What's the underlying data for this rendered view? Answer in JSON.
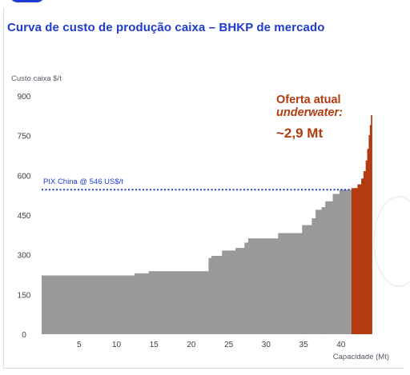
{
  "slide": {
    "title": "Curva de custo de produção caixa – BHKP de mercado"
  },
  "chart_data": {
    "type": "bar",
    "subtype": "cost-curve",
    "title": "Curva de custo de produção caixa – BHKP de mercado",
    "ylabel": "Custo caixa $/t",
    "xlabel": "Capacidade (Mt)",
    "xlim": [
      0,
      44.3
    ],
    "ylim": [
      0,
      900
    ],
    "xticks": [
      5,
      10,
      15,
      20,
      25,
      30,
      35,
      40
    ],
    "yticks": [
      0,
      150,
      300,
      450,
      600,
      750,
      900
    ],
    "grid": false,
    "colors": {
      "base": "#999999",
      "underwater": "#b33b10",
      "reference": "#1f3bd1"
    },
    "steps": [
      {
        "x0": 0,
        "x1": 12.4,
        "y": 222
      },
      {
        "x0": 12.4,
        "x1": 14.3,
        "y": 230
      },
      {
        "x0": 14.3,
        "x1": 22.3,
        "y": 238
      },
      {
        "x0": 22.3,
        "x1": 22.7,
        "y": 288
      },
      {
        "x0": 22.7,
        "x1": 24.1,
        "y": 296
      },
      {
        "x0": 24.1,
        "x1": 25.9,
        "y": 316
      },
      {
        "x0": 25.9,
        "x1": 27.1,
        "y": 326
      },
      {
        "x0": 27.1,
        "x1": 27.6,
        "y": 346
      },
      {
        "x0": 27.6,
        "x1": 31.6,
        "y": 362
      },
      {
        "x0": 31.6,
        "x1": 34.8,
        "y": 382
      },
      {
        "x0": 34.8,
        "x1": 36.1,
        "y": 412
      },
      {
        "x0": 36.1,
        "x1": 36.6,
        "y": 438
      },
      {
        "x0": 36.6,
        "x1": 37.4,
        "y": 470
      },
      {
        "x0": 37.4,
        "x1": 37.9,
        "y": 480
      },
      {
        "x0": 37.9,
        "x1": 38.9,
        "y": 502
      },
      {
        "x0": 38.9,
        "x1": 39.8,
        "y": 530
      },
      {
        "x0": 39.8,
        "x1": 41.4,
        "y": 546
      }
    ],
    "underwater_steps": [
      {
        "x0": 41.4,
        "x1": 42.2,
        "y": 552
      },
      {
        "x0": 42.2,
        "x1": 42.7,
        "y": 566
      },
      {
        "x0": 42.7,
        "x1": 43.0,
        "y": 588
      },
      {
        "x0": 43.0,
        "x1": 43.3,
        "y": 616
      },
      {
        "x0": 43.3,
        "x1": 43.5,
        "y": 656
      },
      {
        "x0": 43.5,
        "x1": 43.7,
        "y": 700
      },
      {
        "x0": 43.7,
        "x1": 43.85,
        "y": 752
      },
      {
        "x0": 43.85,
        "x1": 44.0,
        "y": 790
      },
      {
        "x0": 44.0,
        "x1": 44.15,
        "y": 828
      }
    ],
    "reference_line": {
      "label": "PIX China @ 546 US$/t",
      "value": 546
    },
    "annotation": {
      "line1": "Oferta atual",
      "line2": "underwater:",
      "line3": "~2,9 Mt"
    }
  }
}
